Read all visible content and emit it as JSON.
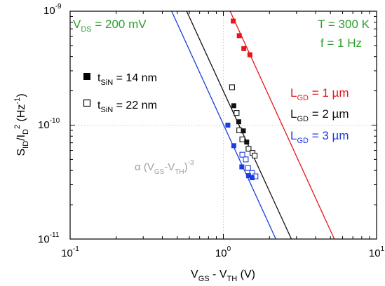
{
  "chart_data": {
    "type": "scatter",
    "xscale": "log",
    "yscale": "log",
    "xlim": [
      0.1,
      10
    ],
    "ylim": [
      1e-11,
      1e-09
    ],
    "grid": true,
    "xlabel": {
      "base": "V",
      "sub1": "GS",
      "mid": " - V",
      "sub2": "TH",
      "tail": " (V)"
    },
    "ylabel": {
      "base": "S",
      "sub1": "ID",
      "mid": "/I",
      "sub2": "D",
      "sup1": "2",
      "tail": " (Hz",
      "sup2": "-1",
      "end": ")"
    },
    "x_ticks": [
      {
        "value": 0.1,
        "base": "10",
        "exp": "-1"
      },
      {
        "value": 1,
        "base": "10",
        "exp": "0"
      },
      {
        "value": 10,
        "base": "10",
        "exp": "1"
      }
    ],
    "y_ticks": [
      {
        "value": 1e-11,
        "base": "10",
        "exp": "-11"
      },
      {
        "value": 1e-10,
        "base": "10",
        "exp": "-10"
      },
      {
        "value": 1e-09,
        "base": "10",
        "exp": "-9"
      }
    ],
    "annotations": {
      "vds": {
        "base": "V",
        "sub": "DS",
        "tail": " = 200 mV",
        "color": "#2ca02c"
      },
      "temperature": {
        "text": "T = 300 K",
        "color": "#2ca02c"
      },
      "frequency": {
        "text": "f = 1 Hz",
        "color": "#2ca02c"
      },
      "slope": {
        "text1": "α (V",
        "sub1": "GS",
        "text2": "-V",
        "sub2": "TH",
        "text3": ")",
        "sup": "-3",
        "color": "#a0a0a0"
      }
    },
    "legend_markers": [
      {
        "base": "t",
        "sub": "SiN",
        "tail": " = 14 nm",
        "filled": true
      },
      {
        "base": "t",
        "sub": "SiN",
        "tail": " = 22 nm",
        "filled": false
      }
    ],
    "series": [
      {
        "base": "L",
        "sub": "GD",
        "tail": " = 1 µm",
        "color": "#e8141c",
        "filled": [
          [
            1.16,
            8.2e-10
          ],
          [
            1.27,
            6.1e-10
          ],
          [
            1.36,
            4.7e-10
          ],
          [
            1.49,
            4.15e-10
          ]
        ],
        "open": [],
        "fit": [
          [
            1.0,
            1.35e-09
          ],
          [
            5.3,
            1e-11
          ]
        ]
      },
      {
        "base": "L",
        "sub": "GD",
        "tail": " = 2 µm",
        "color": "#111111",
        "filled": [
          [
            1.17,
            1.48e-10
          ],
          [
            1.26,
            1.07e-10
          ],
          [
            1.35,
            8.9e-11
          ],
          [
            1.42,
            7.1e-11
          ]
        ],
        "open": [
          [
            1.14,
            2.15e-10
          ],
          [
            1.22,
            1.28e-10
          ],
          [
            1.27,
            9e-11
          ],
          [
            1.33,
            7.5e-11
          ],
          [
            1.46,
            6.2e-11
          ],
          [
            1.55,
            5.7e-11
          ],
          [
            1.6,
            5.4e-11
          ]
        ],
        "fit": [
          [
            0.52,
            1.35e-09
          ],
          [
            2.78,
            1e-11
          ]
        ]
      },
      {
        "base": "L",
        "sub": "GD",
        "tail": " = 3 µm",
        "color": "#1a3de0",
        "filled": [
          [
            1.07,
            1e-10
          ],
          [
            1.17,
            6.6e-11
          ],
          [
            1.32,
            4.3e-11
          ],
          [
            1.46,
            3.6e-11
          ],
          [
            1.54,
            3.45e-11
          ]
        ],
        "open": [
          [
            1.33,
            5.5e-11
          ],
          [
            1.4,
            5e-11
          ],
          [
            1.45,
            4.2e-11
          ],
          [
            1.54,
            3.8e-11
          ],
          [
            1.62,
            3.55e-11
          ]
        ],
        "fit": [
          [
            0.415,
            1.35e-09
          ],
          [
            2.2,
            1e-11
          ]
        ]
      }
    ]
  }
}
